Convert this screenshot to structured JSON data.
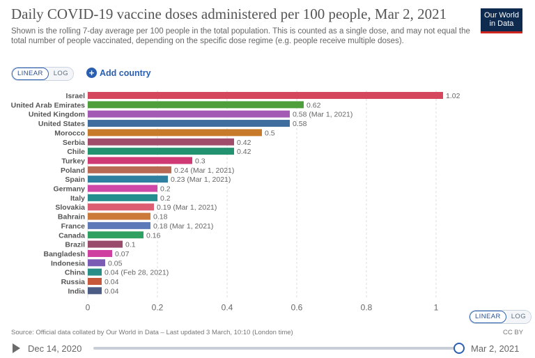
{
  "header": {
    "title": "Daily COVID-19 vaccine doses administered per 100 people, Mar 2, 2021",
    "subtitle": "Shown is the rolling 7-day average per 100 people in the total population. This is counted as a single dose, and may not equal the total number of people vaccinated, depending on the specific dose regime (e.g. people receive multiple doses).",
    "logo_line1": "Our World",
    "logo_line2": "in Data"
  },
  "controls": {
    "linear_label": "LINEAR",
    "log_label": "LOG",
    "add_country_label": "Add country",
    "add_country_icon": "+"
  },
  "colors": {
    "accent": "#2a5fb0",
    "logo_bg": "#0f2a4f",
    "logo_stripe": "#ce261e",
    "gridline": "#dddddd"
  },
  "chart_data": {
    "type": "bar",
    "orientation": "horizontal",
    "title": "Daily COVID-19 vaccine doses administered per 100 people, Mar 2, 2021",
    "xlabel": "",
    "ylabel": "",
    "xlim": [
      0,
      1.02
    ],
    "x_ticks": [
      0,
      0.2,
      0.4,
      0.6,
      0.8,
      1
    ],
    "x_tick_labels": [
      "0",
      "0.2",
      "0.4",
      "0.6",
      "0.8",
      "1"
    ],
    "grid": true,
    "bars": [
      {
        "country": "Israel",
        "value": 1.02,
        "label": "1.02",
        "color": "#d5475c"
      },
      {
        "country": "United Arab Emirates",
        "value": 0.62,
        "label": "0.62",
        "color": "#4f9e3c"
      },
      {
        "country": "United Kingdom",
        "value": 0.58,
        "label": "0.58 (Mar 1, 2021)",
        "color": "#a35ab5"
      },
      {
        "country": "United States",
        "value": 0.58,
        "label": "0.58",
        "color": "#3f6d9e"
      },
      {
        "country": "Morocco",
        "value": 0.5,
        "label": "0.5",
        "color": "#c77b2a"
      },
      {
        "country": "Serbia",
        "value": 0.42,
        "label": "0.42",
        "color": "#a04d6b"
      },
      {
        "country": "Chile",
        "value": 0.42,
        "label": "0.42",
        "color": "#22936e"
      },
      {
        "country": "Turkey",
        "value": 0.3,
        "label": "0.3",
        "color": "#cf3a75"
      },
      {
        "country": "Poland",
        "value": 0.24,
        "label": "0.24 (Mar 1, 2021)",
        "color": "#b86a55"
      },
      {
        "country": "Spain",
        "value": 0.23,
        "label": "0.23 (Mar 1, 2021)",
        "color": "#2f7fa0"
      },
      {
        "country": "Germany",
        "value": 0.2,
        "label": "0.2",
        "color": "#cf48a8"
      },
      {
        "country": "Italy",
        "value": 0.2,
        "label": "0.2",
        "color": "#248d8e"
      },
      {
        "country": "Slovakia",
        "value": 0.19,
        "label": "0.19 (Mar 1, 2021)",
        "color": "#dd5e73"
      },
      {
        "country": "Bahrain",
        "value": 0.18,
        "label": "0.18",
        "color": "#cc7a3a"
      },
      {
        "country": "France",
        "value": 0.18,
        "label": "0.18 (Mar 1, 2021)",
        "color": "#5d79b8"
      },
      {
        "country": "Canada",
        "value": 0.16,
        "label": "0.16",
        "color": "#2ea05f"
      },
      {
        "country": "Brazil",
        "value": 0.1,
        "label": "0.1",
        "color": "#9a4b6c"
      },
      {
        "country": "Bangladesh",
        "value": 0.07,
        "label": "0.07",
        "color": "#cf3fa0"
      },
      {
        "country": "Indonesia",
        "value": 0.05,
        "label": "0.05",
        "color": "#7a5cb5"
      },
      {
        "country": "China",
        "value": 0.04,
        "label": "0.04 (Feb 28, 2021)",
        "color": "#2a8e88"
      },
      {
        "country": "Russia",
        "value": 0.04,
        "label": "0.04",
        "color": "#c8583a"
      },
      {
        "country": "India",
        "value": 0.04,
        "label": "0.04",
        "color": "#4c5d85"
      }
    ]
  },
  "footer": {
    "source": "Source: Official data collated by Our World in Data – Last updated 3 March, 10:10 (London time)",
    "license": "CC BY",
    "timeline_start": "Dec 14, 2020",
    "timeline_end": "Mar 2, 2021",
    "timeline_position": 1.0
  }
}
